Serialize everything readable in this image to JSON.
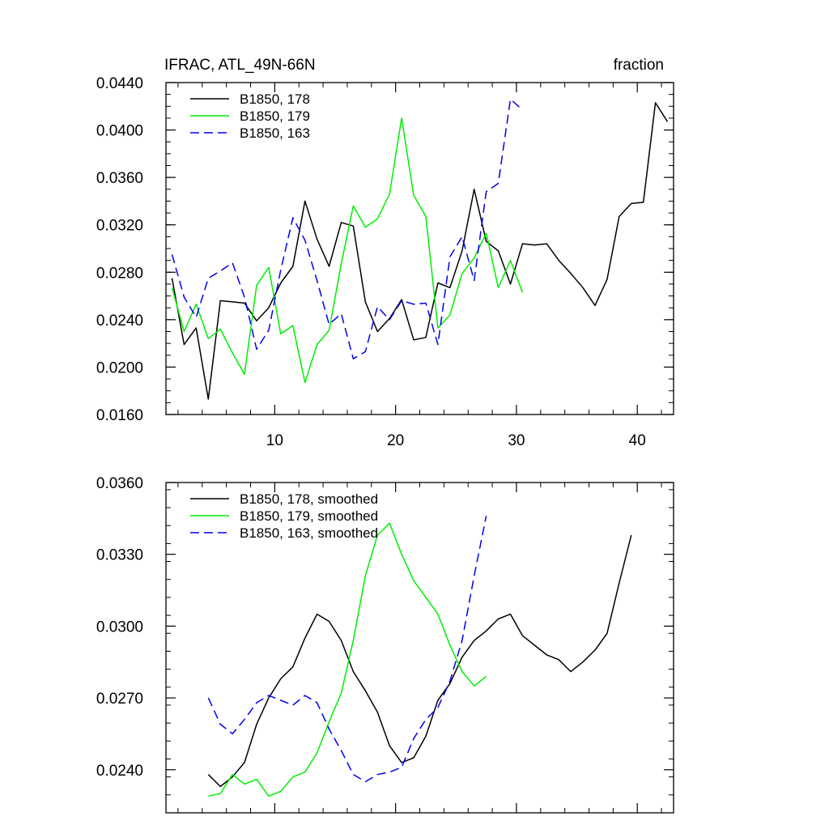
{
  "header": {
    "left": "IFRAC, ATL_49N-66N",
    "right": "fraction"
  },
  "chart_data": [
    {
      "type": "line",
      "title": "IFRAC, ATL_49N-66N",
      "units": "fraction",
      "xlim": [
        1,
        43
      ],
      "ylim": [
        0.016,
        0.044
      ],
      "x_ticks": [
        10,
        20,
        30,
        40
      ],
      "x_tick_labels": [
        "10",
        "20",
        "30",
        "40"
      ],
      "y_ticks": [
        0.016,
        0.02,
        0.024,
        0.028,
        0.032,
        0.036,
        0.04,
        0.044
      ],
      "y_tick_labels": [
        "0.0160",
        "0.0200",
        "0.0240",
        "0.0280",
        "0.0320",
        "0.0360",
        "0.0400",
        "0.0440"
      ],
      "legend": "top-left",
      "series": [
        {
          "name": "B1850, 178",
          "color": "#000000",
          "dash": "solid",
          "start": 1.5,
          "values": [
            0.0275,
            0.0219,
            0.0233,
            0.0173,
            0.0256,
            0.0255,
            0.0254,
            0.0239,
            0.025,
            0.0271,
            0.0285,
            0.034,
            0.0308,
            0.0285,
            0.0322,
            0.0319,
            0.0255,
            0.023,
            0.0241,
            0.0257,
            0.0223,
            0.0225,
            0.0271,
            0.0267,
            0.0298,
            0.035,
            0.0306,
            0.0298,
            0.027,
            0.0304,
            0.0303,
            0.0304,
            0.029,
            0.0279,
            0.0267,
            0.0252,
            0.0274,
            0.0327,
            0.0338,
            0.0339,
            0.0423,
            0.0407
          ]
        },
        {
          "name": "B1850, 179",
          "color": "#00ee00",
          "dash": "solid",
          "start": 1.5,
          "values": [
            0.0267,
            0.023,
            0.0253,
            0.0224,
            0.0232,
            0.0212,
            0.0194,
            0.0269,
            0.0284,
            0.0228,
            0.0235,
            0.0187,
            0.0219,
            0.0231,
            0.0287,
            0.0336,
            0.0318,
            0.0325,
            0.0346,
            0.041,
            0.0345,
            0.0327,
            0.0233,
            0.0244,
            0.0279,
            0.0292,
            0.0313,
            0.0267,
            0.029,
            0.0263
          ]
        },
        {
          "name": "B1850, 163",
          "color": "#0000ee",
          "dash": "dashed",
          "start": 1.5,
          "values": [
            0.0295,
            0.0259,
            0.0242,
            0.0275,
            0.0281,
            0.0288,
            0.0259,
            0.0215,
            0.0231,
            0.0282,
            0.0326,
            0.0307,
            0.0273,
            0.0236,
            0.0245,
            0.0207,
            0.0213,
            0.0251,
            0.024,
            0.0256,
            0.0253,
            0.0254,
            0.0219,
            0.0293,
            0.031,
            0.0273,
            0.0348,
            0.0355,
            0.0426,
            0.0417
          ]
        }
      ]
    },
    {
      "type": "line",
      "xlim": [
        1,
        43
      ],
      "ylim": [
        0.0222,
        0.036
      ],
      "x_ticks": [
        10,
        20,
        30,
        40
      ],
      "x_tick_labels": [],
      "y_ticks": [
        0.024,
        0.027,
        0.03,
        0.033,
        0.036
      ],
      "y_tick_labels": [
        "0.0240",
        "0.0270",
        "0.0300",
        "0.0330",
        "0.0360"
      ],
      "legend": "top-left",
      "series": [
        {
          "name": "B1850, 178, smoothed",
          "color": "#000000",
          "dash": "solid",
          "start": 4.5,
          "values": [
            0.0238,
            0.0233,
            0.0237,
            0.0243,
            0.0259,
            0.027,
            0.0278,
            0.0283,
            0.0295,
            0.0305,
            0.0302,
            0.0294,
            0.0281,
            0.0273,
            0.0264,
            0.025,
            0.0243,
            0.0245,
            0.0254,
            0.0269,
            0.0276,
            0.0287,
            0.0294,
            0.0298,
            0.0303,
            0.0305,
            0.0296,
            0.0292,
            0.0288,
            0.0286,
            0.0281,
            0.0285,
            0.029,
            0.0297,
            0.0318,
            0.0338
          ]
        },
        {
          "name": "B1850, 179, smoothed",
          "color": "#00ee00",
          "dash": "solid",
          "start": 4.5,
          "values": [
            0.0229,
            0.023,
            0.0238,
            0.0234,
            0.0236,
            0.0229,
            0.0231,
            0.0237,
            0.0239,
            0.0247,
            0.026,
            0.0272,
            0.0294,
            0.0321,
            0.0338,
            0.0343,
            0.033,
            0.0319,
            0.0312,
            0.0305,
            0.0292,
            0.0281,
            0.0275,
            0.0279
          ]
        },
        {
          "name": "B1850, 163, smoothed",
          "color": "#0000ee",
          "dash": "dashed",
          "start": 4.5,
          "values": [
            0.027,
            0.0259,
            0.0255,
            0.0261,
            0.0268,
            0.0271,
            0.0269,
            0.0267,
            0.0271,
            0.0268,
            0.0257,
            0.0248,
            0.0238,
            0.0235,
            0.0238,
            0.0239,
            0.0241,
            0.0253,
            0.0261,
            0.0266,
            0.0277,
            0.0294,
            0.0321,
            0.0346
          ]
        }
      ]
    }
  ]
}
